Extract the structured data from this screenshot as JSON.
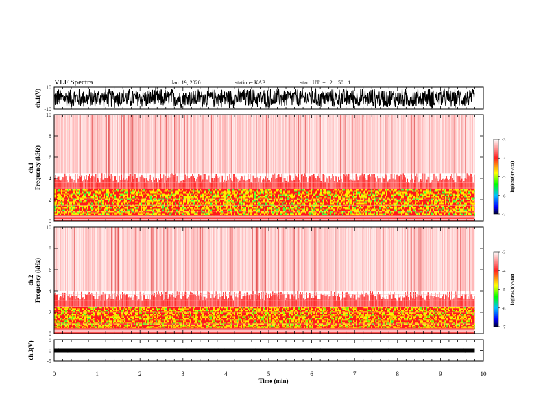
{
  "header": {
    "title": "VLF Spectra",
    "date": "Jan. 19, 2020",
    "station": "station= KAP",
    "start": "start  UT  =   2  : 50 : 1"
  },
  "chart_data": [
    {
      "type": "line",
      "panel": "ch1-waveform",
      "ylabel": "ch.1(V)",
      "ylim": [
        -10,
        10
      ],
      "yticks": [
        "10",
        "-10"
      ],
      "xlim": [
        0,
        10
      ],
      "description_values": {
        "amplitude_range": [
          -10,
          10
        ],
        "ends_at_min": 9.8
      }
    },
    {
      "type": "heatmap",
      "panel": "ch1-spectrogram",
      "ylabel": "ch.1\nFrequency (kHz)",
      "ylabel_line1": "ch.1",
      "ylabel_line2": "Frequency (kHz)",
      "ylim": [
        0,
        10
      ],
      "yticks": [
        "0",
        "2",
        "4",
        "6",
        "8",
        "10"
      ],
      "xlim": [
        0,
        10
      ],
      "band_strong_khz": [
        0.5,
        3.0
      ],
      "band_medium_khz": [
        3.0,
        4.5
      ],
      "colorbar": {
        "label": "log(PSD)(V²/Hz)",
        "ticks": [
          "-3",
          "-4",
          "-5",
          "-6",
          "-7"
        ],
        "range": [
          -7,
          -3
        ]
      }
    },
    {
      "type": "heatmap",
      "panel": "ch2-spectrogram",
      "ylabel_line1": "ch.2",
      "ylabel_line2": "Frequency (kHz)",
      "ylim": [
        0,
        10
      ],
      "yticks": [
        "0",
        "2",
        "4",
        "6",
        "8",
        "10"
      ],
      "xlim": [
        0,
        10
      ],
      "band_strong_khz": [
        0.5,
        2.5
      ],
      "band_medium_khz": [
        2.5,
        4.0
      ],
      "colorbar": {
        "label": "log(PSD)(V²/Hz)",
        "ticks": [
          "-3",
          "-4",
          "-5",
          "-6",
          "-7"
        ],
        "range": [
          -7,
          -3
        ]
      }
    },
    {
      "type": "line",
      "panel": "ch3-waveform",
      "ylabel": "ch.3(V)",
      "ylim": [
        -5,
        5
      ],
      "yticks": [
        "5",
        "0",
        "-5"
      ],
      "xlim": [
        0,
        10
      ],
      "description_values": {
        "amplitude_range": [
          -0.6,
          0.6
        ],
        "offset_v": 0
      }
    }
  ],
  "xaxis": {
    "label": "Time (min)",
    "ticks": [
      "0",
      "1",
      "2",
      "3",
      "4",
      "5",
      "6",
      "7",
      "8",
      "9",
      "10"
    ]
  },
  "colors": {
    "colorbar_stops": [
      "#ffffff",
      "#ff0000",
      "#ffff00",
      "#00ff00",
      "#00ffff",
      "#0000ff",
      "#000000"
    ]
  }
}
